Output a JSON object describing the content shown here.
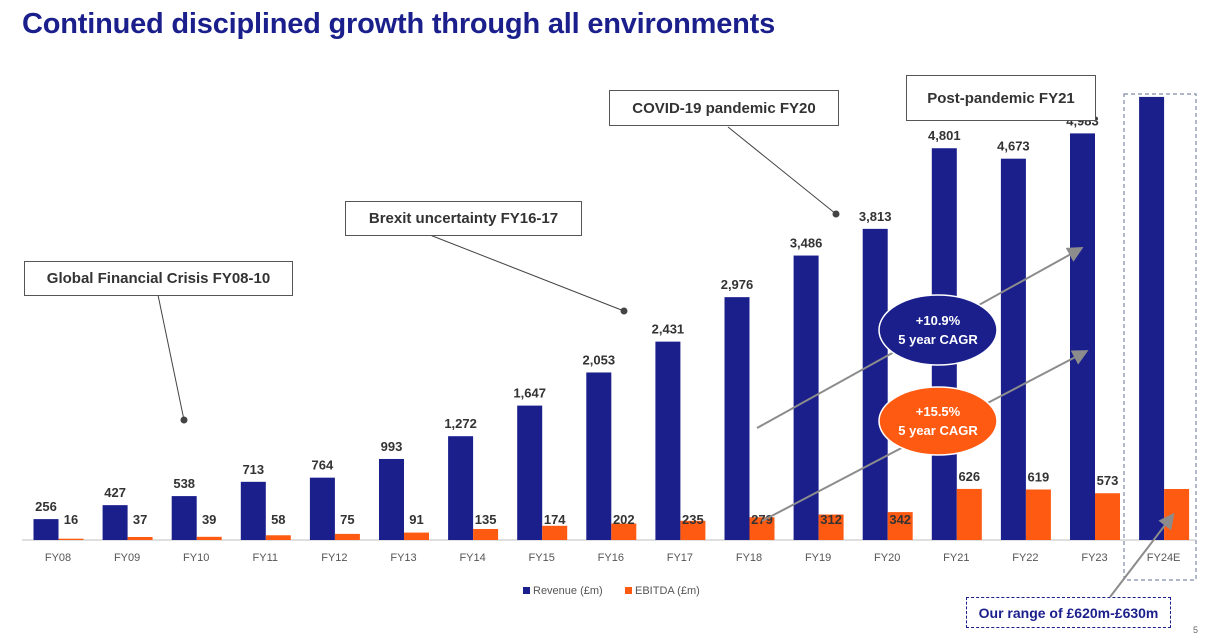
{
  "title": "Continued disciplined growth through all environments",
  "page_number": "5",
  "callouts": {
    "gfc": "Global Financial Crisis FY08-10",
    "brexit": "Brexit uncertainty FY16-17",
    "covid": "COVID-19 pandemic FY20",
    "post": "Post-pandemic FY21"
  },
  "cagr": {
    "revenue": {
      "line1": "+10.9%",
      "line2": "5 year CAGR"
    },
    "ebitda": {
      "line1": "+15.5%",
      "line2": "5 year CAGR"
    }
  },
  "range_note": "Our range of £620m-£630m",
  "colors": {
    "revenue": "#1a1f8c",
    "ebitda": "#ff5a12",
    "title": "#1a1f8c"
  },
  "chart_data": {
    "type": "bar",
    "categories": [
      "FY08",
      "FY09",
      "FY10",
      "FY11",
      "FY12",
      "FY13",
      "FY14",
      "FY15",
      "FY16",
      "FY17",
      "FY18",
      "FY19",
      "FY20",
      "FY21",
      "FY22",
      "FY23",
      "FY24E"
    ],
    "series": [
      {
        "name": "Revenue (£m)",
        "values": [
          256,
          427,
          538,
          713,
          764,
          993,
          1272,
          1647,
          2053,
          2431,
          2976,
          3486,
          3813,
          4801,
          4673,
          4983,
          5430
        ],
        "labels": [
          "256",
          "427",
          "538",
          "713",
          "764",
          "993",
          "1,272",
          "1,647",
          "2,053",
          "2,431",
          "2,976",
          "3,486",
          "3,813",
          "4,801",
          "4,673",
          "4,983",
          ""
        ]
      },
      {
        "name": "EBITDA (£m)",
        "values": [
          16,
          37,
          39,
          58,
          75,
          91,
          135,
          174,
          202,
          235,
          279,
          312,
          342,
          626,
          619,
          573,
          625
        ],
        "labels": [
          "16",
          "37",
          "39",
          "58",
          "75",
          "91",
          "135",
          "174",
          "202",
          "235",
          "279",
          "312",
          "342",
          "626",
          "619",
          "573",
          ""
        ]
      }
    ],
    "legend_position": "bottom"
  }
}
